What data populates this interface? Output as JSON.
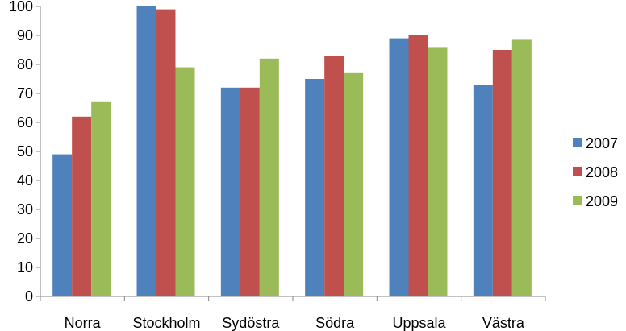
{
  "chart_data": {
    "type": "bar",
    "title": "",
    "xlabel": "",
    "ylabel": "",
    "ylim": [
      0,
      100
    ],
    "yticks": [
      0,
      10,
      20,
      30,
      40,
      50,
      60,
      70,
      80,
      90,
      100
    ],
    "grid": false,
    "legend_position": "right",
    "categories": [
      "Norra",
      "Stockholm",
      "Sydöstra",
      "Södra",
      "Uppsala",
      "Västra"
    ],
    "series": [
      {
        "name": "2007",
        "color": "#4F81BD",
        "values": [
          49,
          100,
          72,
          75,
          89,
          73
        ]
      },
      {
        "name": "2008",
        "color": "#C0504D",
        "values": [
          62,
          99,
          72,
          83,
          90,
          85
        ]
      },
      {
        "name": "2009",
        "color": "#9BBB59",
        "values": [
          67,
          79,
          82,
          77,
          86,
          88.5
        ]
      }
    ]
  }
}
